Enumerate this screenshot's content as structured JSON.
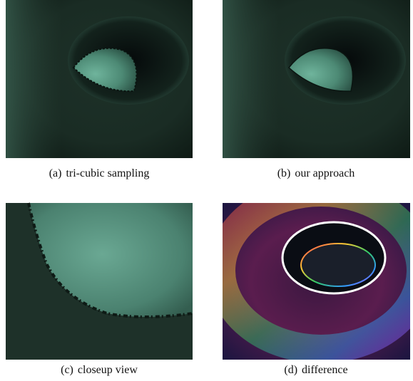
{
  "figure": {
    "panels": [
      {
        "label": "(a)",
        "caption": "tri-cubic sampling"
      },
      {
        "label": "(b)",
        "caption": "our approach"
      },
      {
        "label": "(c)",
        "caption": "closeup view"
      },
      {
        "label": "(d)",
        "caption": "difference"
      }
    ]
  }
}
